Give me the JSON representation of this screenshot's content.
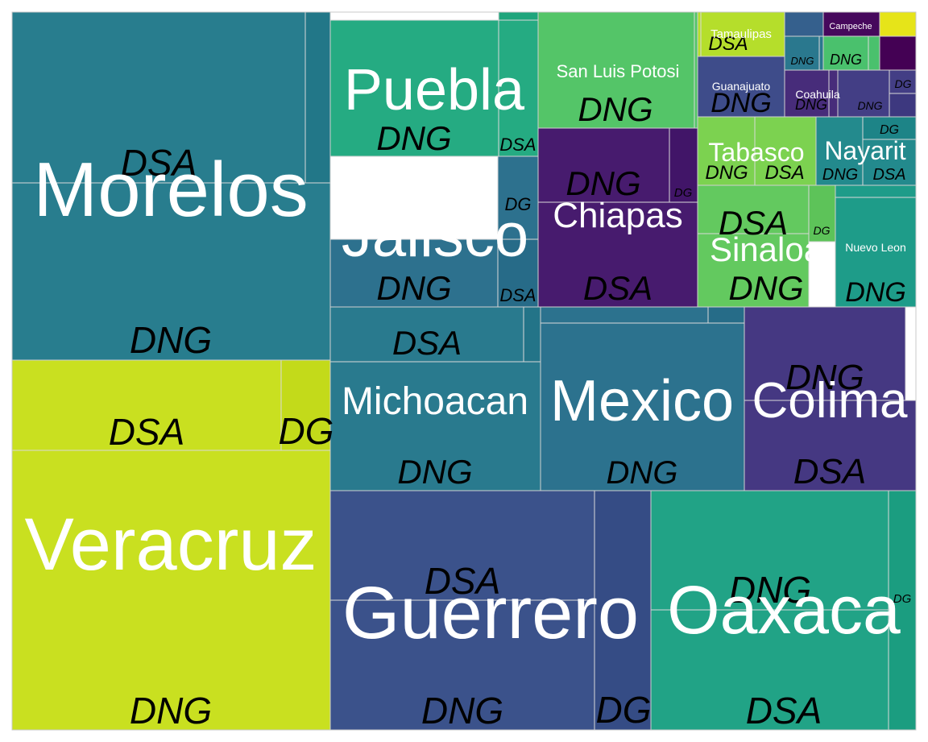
{
  "chart_data": {
    "type": "treemap",
    "title": "",
    "groups": [
      {
        "name": "Morelos",
        "color": "#287d8e",
        "label_size": 96,
        "sub_size": 46,
        "children": [
          {
            "name": "DNG",
            "value": 0
          },
          {
            "name": "DSA",
            "value": 0
          },
          {
            "name": "",
            "value": 0
          }
        ]
      },
      {
        "name": "Veracruz",
        "color": "#c9e020",
        "label_size": 92,
        "sub_size": 46,
        "children": [
          {
            "name": "DNG",
            "value": 0
          },
          {
            "name": "DSA",
            "value": 0
          },
          {
            "name": "DG",
            "value": 0
          }
        ]
      },
      {
        "name": "Guerrero",
        "color": "#3b528b",
        "label_size": 92,
        "sub_size": 46,
        "children": [
          {
            "name": "DNG",
            "value": 0
          },
          {
            "name": "DSA",
            "value": 0
          },
          {
            "name": "DG",
            "value": 0
          }
        ]
      },
      {
        "name": "Oaxaca",
        "color": "#21a386",
        "label_size": 84,
        "sub_size": 46,
        "children": [
          {
            "name": "DSA",
            "value": 0
          },
          {
            "name": "DNG",
            "value": 0
          },
          {
            "name": "DG",
            "value": 0
          }
        ]
      },
      {
        "name": "Mexico",
        "color": "#2c728e",
        "label_size": 72,
        "sub_size": 40,
        "children": [
          {
            "name": "DNG",
            "value": 0
          },
          {
            "name": "",
            "value": 0
          },
          {
            "name": "",
            "value": 0
          }
        ]
      },
      {
        "name": "Colima",
        "color": "#453882",
        "label_size": 62,
        "sub_size": 44,
        "children": [
          {
            "name": "DSA",
            "value": 0
          },
          {
            "name": "DNG",
            "value": 0
          }
        ]
      },
      {
        "name": "Michoacan",
        "color": "#297a8e",
        "label_size": 48,
        "sub_size": 42,
        "children": [
          {
            "name": "DNG",
            "value": 0
          },
          {
            "name": "DSA",
            "value": 0
          },
          {
            "name": "",
            "value": 0
          }
        ]
      },
      {
        "name": "Jalisco",
        "color": "#2d718e",
        "label_size": 76,
        "sub_size": 42,
        "children": [
          {
            "name": "DNG",
            "value": 0
          },
          {
            "name": "DG",
            "value": 0
          },
          {
            "name": "DSA",
            "value": 0
          }
        ]
      },
      {
        "name": "Puebla",
        "color": "#25ab82",
        "label_size": 72,
        "sub_size": 42,
        "children": [
          {
            "name": "DNG",
            "value": 0
          },
          {
            "name": "DSA",
            "value": 0
          },
          {
            "name": "",
            "value": 0
          }
        ]
      },
      {
        "name": "Chiapas",
        "color": "#471b6e",
        "label_size": 44,
        "sub_size": 42,
        "children": [
          {
            "name": "DSA",
            "value": 0
          },
          {
            "name": "DNG",
            "value": 0
          },
          {
            "name": "DG",
            "value": 0
          }
        ]
      },
      {
        "name": "San  Luis Potosi",
        "color": "#54c568",
        "label_size": 22,
        "sub_size": 42,
        "children": [
          {
            "name": "DNG",
            "value": 0
          },
          {
            "name": "",
            "value": 0
          }
        ]
      },
      {
        "name": "Sinaloa",
        "color": "#63c95f",
        "label_size": 42,
        "sub_size": 42,
        "children": [
          {
            "name": "DNG",
            "value": 0
          },
          {
            "name": "DSA",
            "value": 0
          },
          {
            "name": "DG",
            "value": 0
          }
        ]
      },
      {
        "name": "Nuevo Leon",
        "color": "#1e9c89",
        "label_size": 14,
        "sub_size": 34,
        "children": [
          {
            "name": "DNG",
            "value": 0
          },
          {
            "name": "",
            "value": 0
          }
        ]
      },
      {
        "name": "Tabasco",
        "color": "#7cd250",
        "label_size": 32,
        "sub_size": 24,
        "children": [
          {
            "name": "DNG",
            "value": 0
          },
          {
            "name": "DSA",
            "value": 0
          }
        ]
      },
      {
        "name": "Nayarit",
        "color": "#238a8d",
        "label_size": 32,
        "sub_size": 20,
        "children": [
          {
            "name": "DNG",
            "value": 0
          },
          {
            "name": "DSA",
            "value": 0
          },
          {
            "name": "DG",
            "value": 0
          }
        ]
      },
      {
        "name": "Tamaulipas",
        "color": "#b5de2b",
        "label_size": 15,
        "sub_size": 24,
        "children": [
          {
            "name": "DSA",
            "value": 0
          },
          {
            "name": "",
            "value": 0
          }
        ]
      },
      {
        "name": "Guanajuato",
        "color": "#3e4c8a",
        "label_size": 14,
        "sub_size": 34,
        "children": [
          {
            "name": "DNG",
            "value": 0
          }
        ]
      },
      {
        "name": "Coahuila",
        "color": "#472c7a",
        "label_size": 14,
        "sub_size": 18,
        "children": [
          {
            "name": "DNG",
            "value": 0
          },
          {
            "name": "",
            "value": 0
          }
        ]
      },
      {
        "name": "",
        "color": "#433e85",
        "label_size": 0,
        "sub_size": 14,
        "children": [
          {
            "name": "DNG",
            "value": 0
          },
          {
            "name": "DG",
            "value": 0
          },
          {
            "name": "",
            "value": 0
          }
        ]
      },
      {
        "name": "",
        "color": "#2a788e",
        "label_size": 0,
        "sub_size": 13,
        "children": [
          {
            "name": "DNG",
            "value": 0
          },
          {
            "name": "",
            "value": 0
          }
        ]
      },
      {
        "name": "",
        "color": "#4ac16d",
        "label_size": 0,
        "sub_size": 18,
        "children": [
          {
            "name": "DNG",
            "value": 0
          },
          {
            "name": "",
            "value": 0
          }
        ]
      },
      {
        "name": "Campeche",
        "color": "#46085c",
        "label_size": 11,
        "sub_size": 0,
        "children": [
          {
            "name": "",
            "value": 0
          }
        ]
      },
      {
        "name": "",
        "color": "#e6e419",
        "label_size": 0,
        "sub_size": 0,
        "children": [
          {
            "name": "",
            "value": 0
          }
        ]
      },
      {
        "name": "",
        "color": "#440154",
        "label_size": 0,
        "sub_size": 0,
        "children": [
          {
            "name": "",
            "value": 0
          }
        ]
      },
      {
        "name": "",
        "color": "#35608d",
        "label_size": 0,
        "sub_size": 0,
        "children": [
          {
            "name": "",
            "value": 0
          }
        ]
      }
    ]
  }
}
